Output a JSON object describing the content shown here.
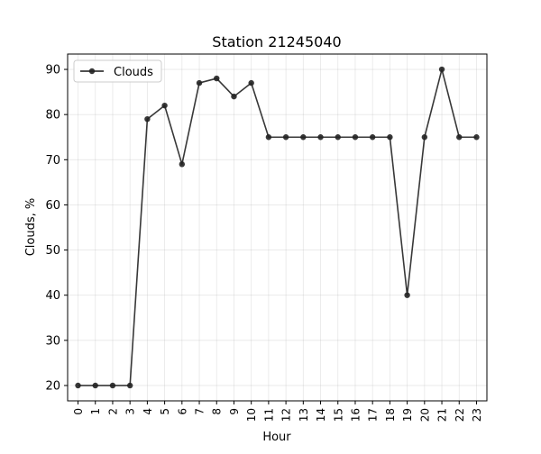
{
  "chart_data": {
    "type": "line",
    "title": "Station 21245040",
    "xlabel": "Hour",
    "ylabel": "Clouds, %",
    "x": [
      0,
      1,
      2,
      3,
      4,
      5,
      6,
      7,
      8,
      9,
      10,
      11,
      12,
      13,
      14,
      15,
      16,
      17,
      18,
      19,
      20,
      21,
      22,
      23
    ],
    "xticks": [
      "0",
      "1",
      "2",
      "3",
      "4",
      "5",
      "6",
      "7",
      "8",
      "9",
      "10",
      "11",
      "12",
      "13",
      "14",
      "15",
      "16",
      "17",
      "18",
      "19",
      "20",
      "21",
      "22",
      "23"
    ],
    "yticks": [
      20,
      30,
      40,
      50,
      60,
      70,
      80,
      90
    ],
    "ylim": [
      16.6,
      93.4
    ],
    "xlim": [
      -0.6,
      23.6
    ],
    "grid": true,
    "legend_position": "upper-left",
    "series": [
      {
        "name": "Clouds",
        "color": "#222222",
        "marker": "circle",
        "values": [
          20,
          20,
          20,
          20,
          79,
          82,
          69,
          87,
          88,
          84,
          87,
          75,
          75,
          75,
          75,
          75,
          75,
          75,
          75,
          40,
          75,
          90,
          75,
          75
        ]
      }
    ]
  }
}
